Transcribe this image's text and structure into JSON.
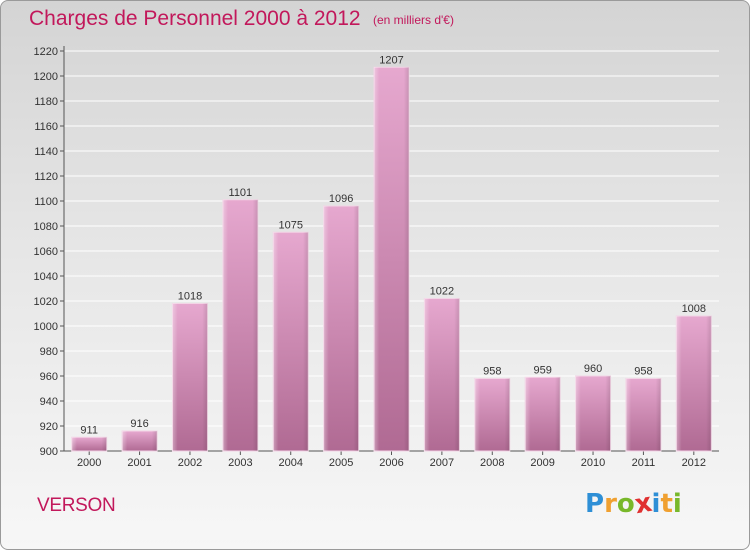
{
  "title": "Charges de Personnel 2000 à 2012",
  "subtitle": "(en milliers d'€)",
  "place": "VERSON",
  "logo": {
    "letters": [
      "P",
      "r",
      "o",
      "x",
      "i",
      "t",
      "i"
    ],
    "colors": [
      "#2e8fd6",
      "#f0a030",
      "#78b82a",
      "#e03030",
      "#2e8fd6",
      "#f0a030",
      "#78b82a"
    ]
  },
  "colors": {
    "accent": "#c2185b",
    "bar_light": "#e6a8cf",
    "bar_dark": "#b06a93"
  },
  "chart_data": {
    "type": "bar",
    "title": "Charges de Personnel 2000 à 2012",
    "subtitle": "(en milliers d'€)",
    "xlabel": "",
    "ylabel": "",
    "categories": [
      "2000",
      "2001",
      "2002",
      "2003",
      "2004",
      "2005",
      "2006",
      "2007",
      "2008",
      "2009",
      "2010",
      "2011",
      "2012"
    ],
    "values": [
      911,
      916,
      1018,
      1101,
      1075,
      1096,
      1207,
      1022,
      958,
      959,
      960,
      958,
      1008
    ],
    "data_labels": [
      "911",
      "916",
      "1018",
      "1101",
      "1075",
      "1096",
      "1207",
      "1022",
      "958",
      "959",
      "960",
      "958",
      "1008"
    ],
    "ylim": [
      900,
      1220
    ],
    "yticks": [
      900,
      920,
      940,
      960,
      980,
      1000,
      1020,
      1040,
      1060,
      1080,
      1100,
      1120,
      1140,
      1160,
      1180,
      1200,
      1220
    ],
    "grid": true,
    "legend": "none"
  }
}
